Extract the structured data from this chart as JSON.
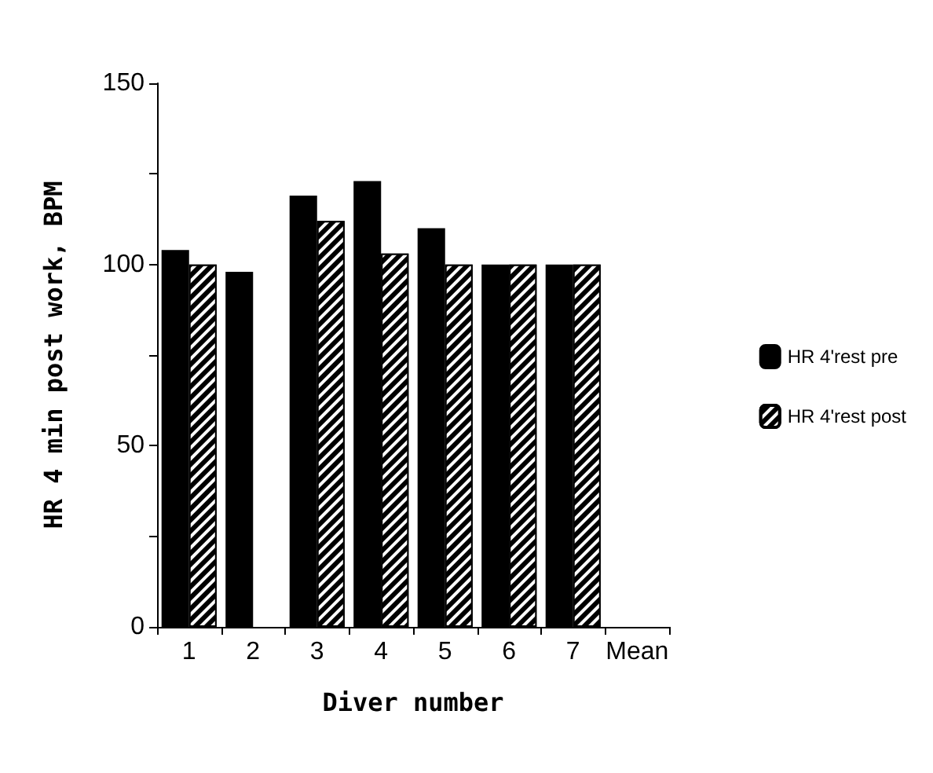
{
  "chart_data": {
    "type": "bar",
    "xlabel": "Diver number",
    "ylabel": "HR 4 min post work, BPM",
    "categories": [
      "1",
      "2",
      "3",
      "4",
      "5",
      "6",
      "7",
      "Mean"
    ],
    "series": [
      {
        "name": "HR 4'rest pre",
        "color": "#000000",
        "values": [
          104,
          98,
          119,
          123,
          110,
          100,
          100,
          null
        ]
      },
      {
        "name": "HR 4'rest post",
        "color": "#000000",
        "values": [
          100,
          null,
          112,
          103,
          100,
          100,
          100,
          null
        ]
      }
    ],
    "ylim": [
      0,
      150
    ],
    "yticks": [
      0,
      {
        "value": 25,
        "label": null
      },
      50,
      {
        "value": 75,
        "label": null
      },
      100,
      {
        "value": 125,
        "label": null
      },
      150
    ],
    "grid": false,
    "legend": "right"
  }
}
